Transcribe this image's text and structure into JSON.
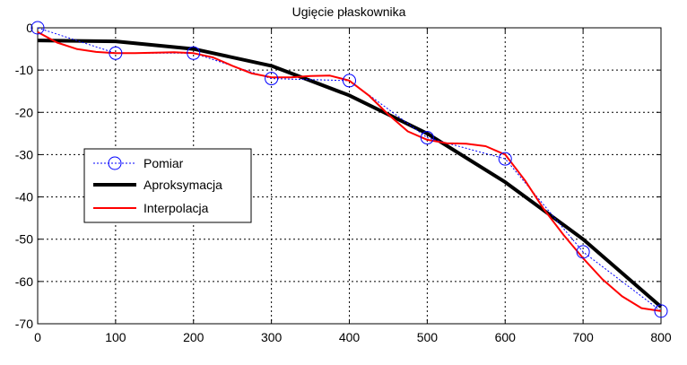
{
  "chart_data": {
    "type": "line",
    "title": "Ugięcie płaskownika",
    "xlabel": "",
    "ylabel": "",
    "xlim": [
      0,
      800
    ],
    "ylim": [
      -70,
      0
    ],
    "xticks": [
      0,
      100,
      200,
      300,
      400,
      500,
      600,
      700,
      800
    ],
    "yticks": [
      0,
      -10,
      -20,
      -30,
      -40,
      -50,
      -60,
      -70
    ],
    "grid": true,
    "legend_position": "left",
    "series": [
      {
        "name": "Pomiar",
        "color": "#0000ff",
        "style": "dotted line with circle markers",
        "x": [
          0,
          100,
          200,
          300,
          400,
          500,
          600,
          700,
          800
        ],
        "y": [
          0,
          -6,
          -6,
          -12,
          -12.5,
          -26,
          -31,
          -53,
          -67
        ]
      },
      {
        "name": "Aproksymacja",
        "color": "#000000",
        "style": "thick solid line",
        "x": [
          0,
          100,
          200,
          300,
          400,
          500,
          600,
          700,
          800
        ],
        "y": [
          -3,
          -3.2,
          -5,
          -9,
          -16,
          -25,
          -36.5,
          -50,
          -66
        ]
      },
      {
        "name": "Interpolacja",
        "color": "#ff0000",
        "style": "solid line",
        "x": [
          0,
          25,
          50,
          75,
          100,
          125,
          150,
          175,
          200,
          225,
          250,
          275,
          300,
          325,
          350,
          375,
          400,
          425,
          450,
          475,
          500,
          525,
          550,
          575,
          600,
          625,
          650,
          675,
          700,
          725,
          750,
          775,
          800
        ],
        "y": [
          -1,
          -3.5,
          -5,
          -5.7,
          -6,
          -6,
          -5.9,
          -5.8,
          -6,
          -7,
          -9,
          -10.8,
          -11.7,
          -11.7,
          -11.4,
          -11.3,
          -12.5,
          -16,
          -20.5,
          -24.5,
          -26.5,
          -27.3,
          -27.4,
          -28,
          -30,
          -36,
          -43,
          -49,
          -54.5,
          -59.5,
          -63.5,
          -66.3,
          -67
        ]
      }
    ]
  }
}
